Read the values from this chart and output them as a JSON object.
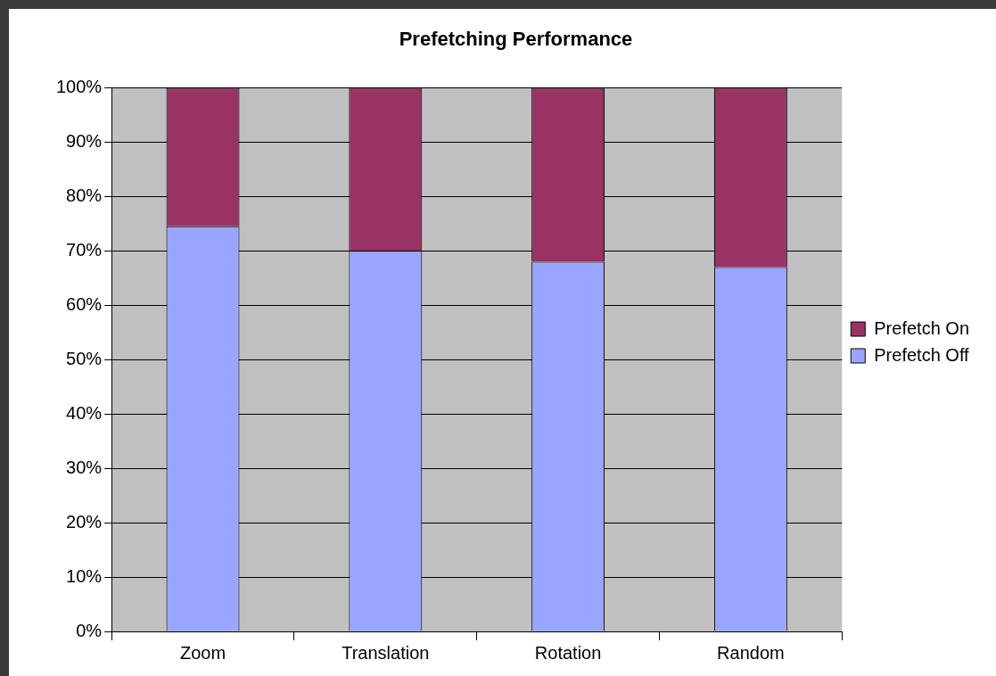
{
  "chart_data": {
    "type": "bar",
    "title": "Prefetching Performance",
    "categories": [
      "Zoom",
      "Translation",
      "Rotation",
      "Random"
    ],
    "stacked": true,
    "series": [
      {
        "name": "Prefetch Off",
        "color": "#99a6ff",
        "values": [
          74.5,
          70,
          68,
          67
        ]
      },
      {
        "name": "Prefetch On",
        "color": "#993366",
        "values": [
          25.5,
          30,
          32,
          33
        ]
      }
    ],
    "ylim": [
      0,
      100
    ],
    "yticks": [
      {
        "value": 0,
        "label": "0%"
      },
      {
        "value": 10,
        "label": "10%"
      },
      {
        "value": 20,
        "label": "20%"
      },
      {
        "value": 30,
        "label": "30%"
      },
      {
        "value": 40,
        "label": "40%"
      },
      {
        "value": 50,
        "label": "50%"
      },
      {
        "value": 60,
        "label": "60%"
      },
      {
        "value": 70,
        "label": "70%"
      },
      {
        "value": 80,
        "label": "80%"
      },
      {
        "value": 90,
        "label": "90%"
      },
      {
        "value": 100,
        "label": "100%"
      }
    ],
    "grid": "y",
    "legend": "right"
  }
}
